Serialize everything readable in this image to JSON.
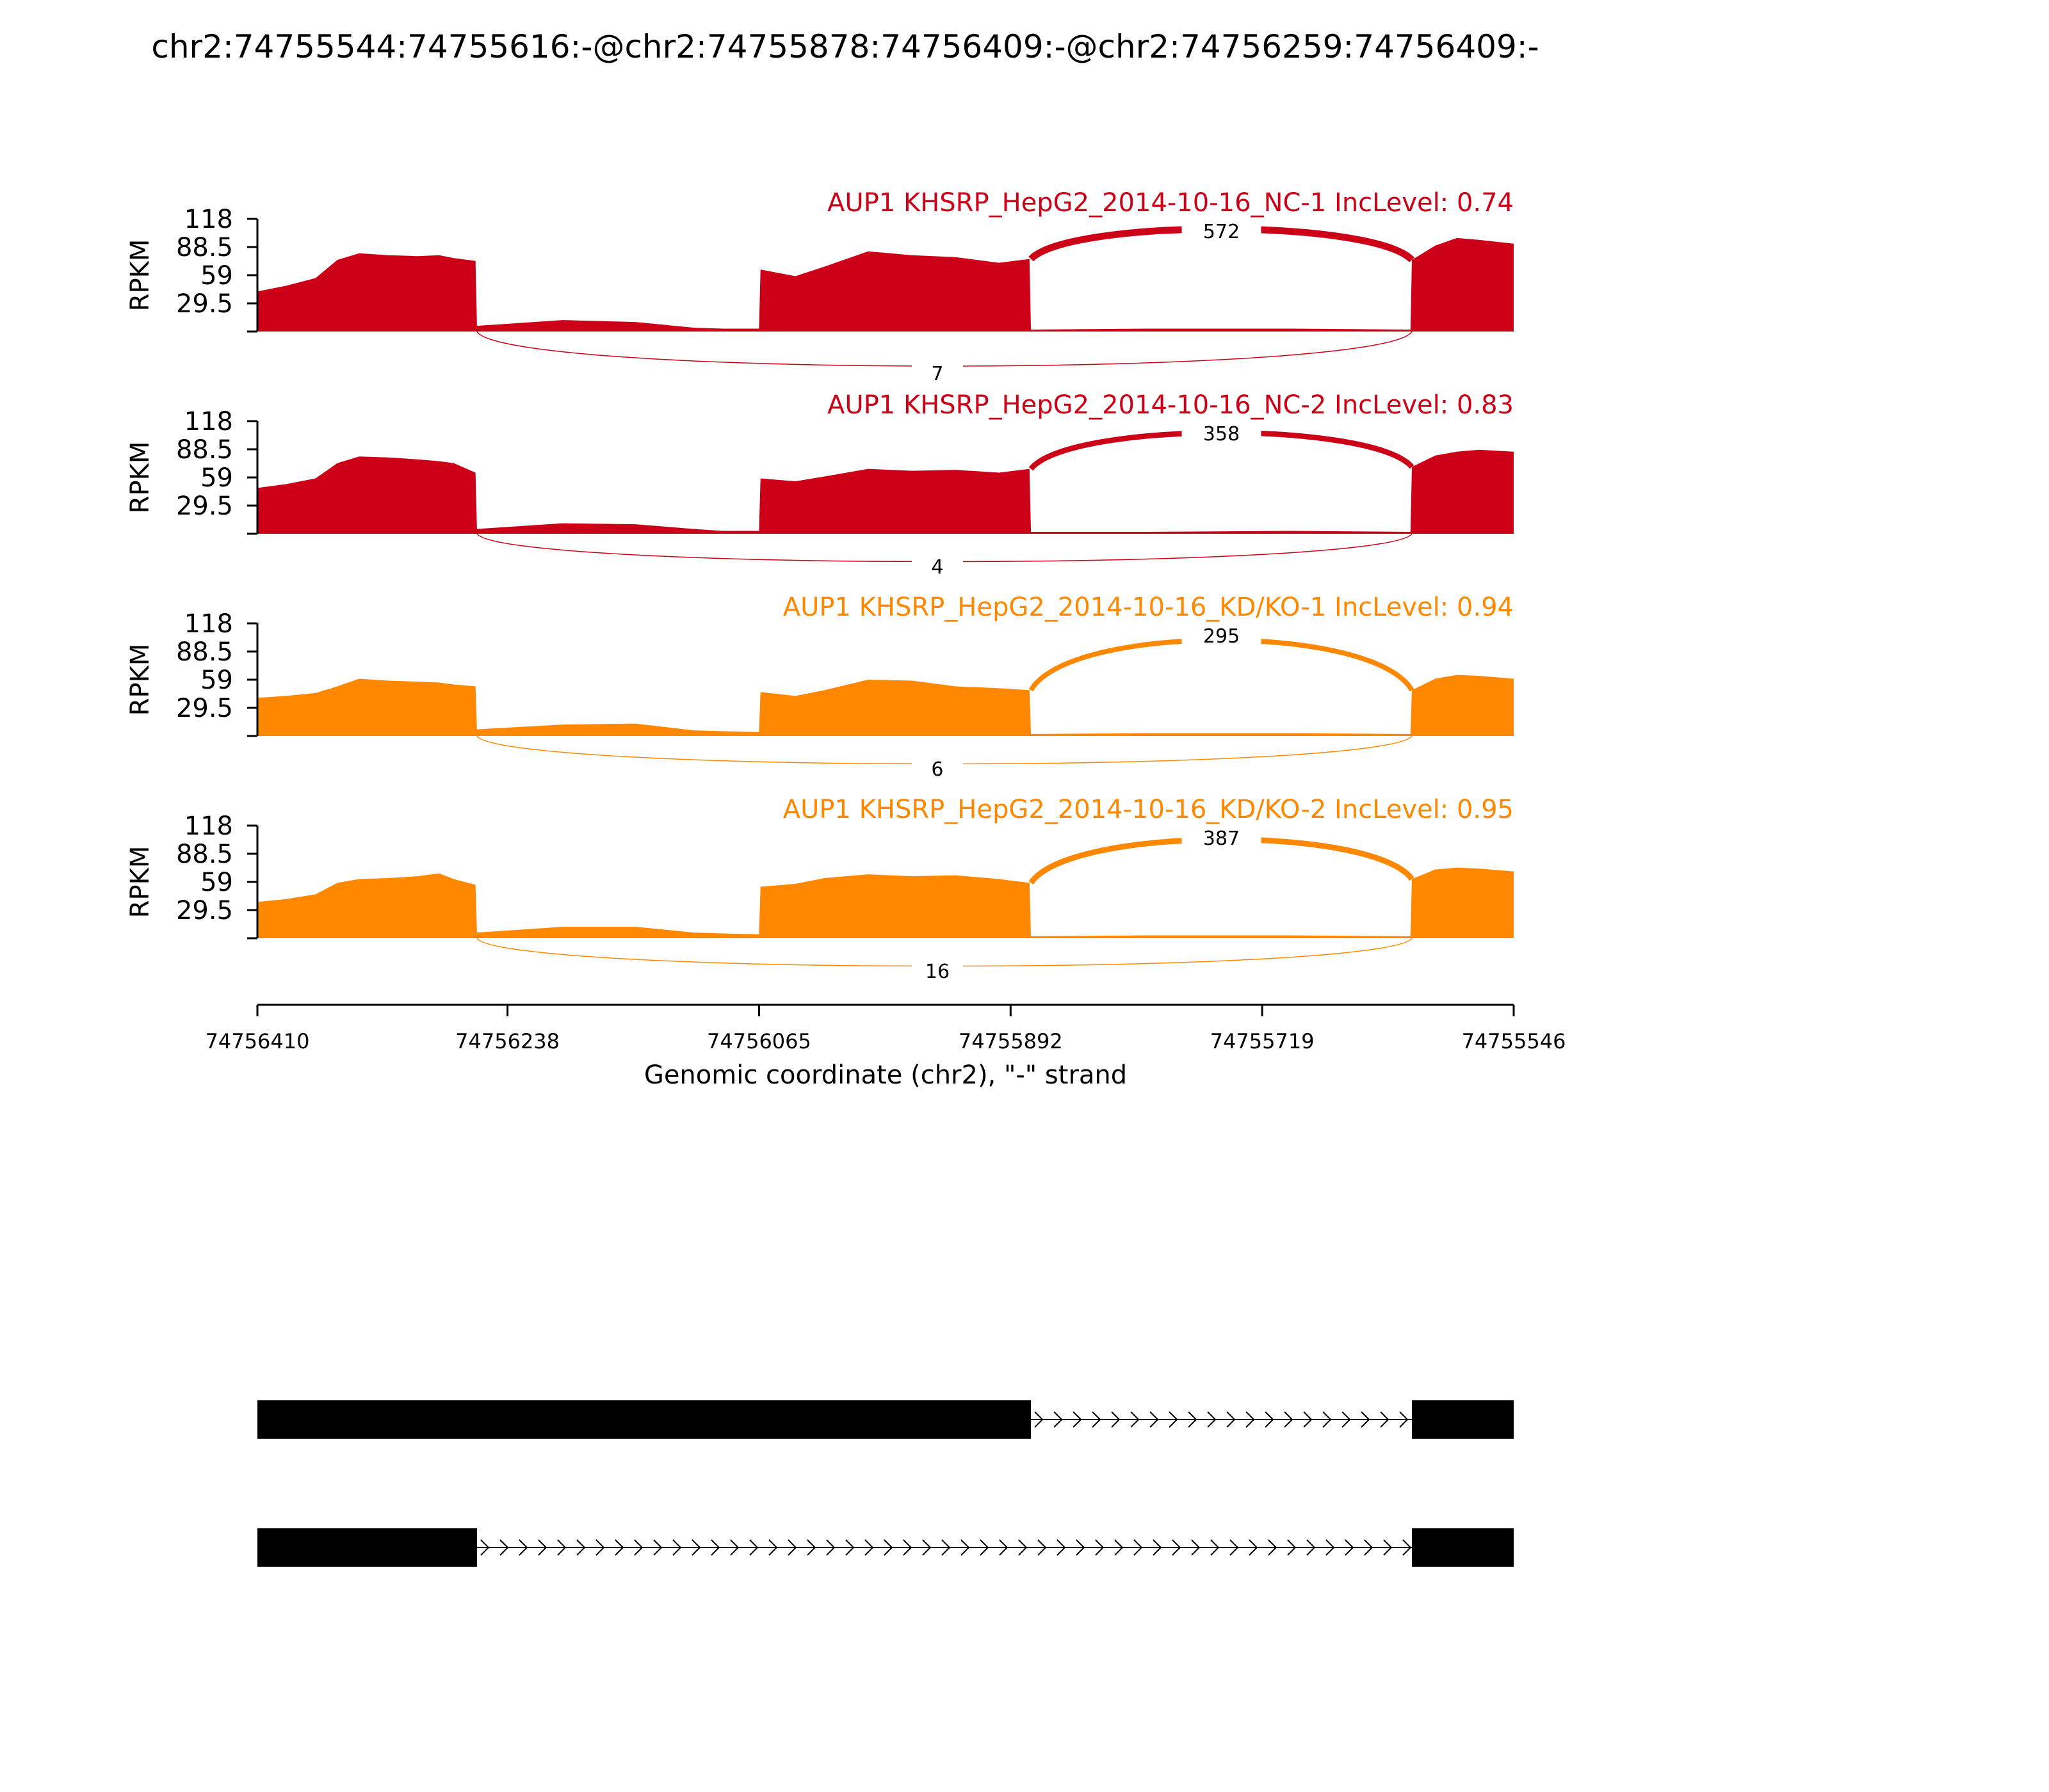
{
  "title": "chr2:74755544:74755616:-@chr2:74755878:74756409:-@chr2:74756259:74756409:-",
  "colors": {
    "nc": "#CC0016",
    "kd": "#FF8800",
    "text": "#000000"
  },
  "chart_data": {
    "type": "area",
    "title": "chr2:74755544:74755616:-@chr2:74755878:74756409:-@chr2:74756259:74756409:-",
    "xlabel": "Genomic coordinate (chr2), \"-\" strand",
    "ylabel": "RPKM",
    "xlim": [
      74756410,
      74755546
    ],
    "x_ticks": [
      "74756410",
      "74756238",
      "74756065",
      "74755892",
      "74755719",
      "74755546"
    ],
    "y_ticks": [
      "118",
      "88.5",
      "59",
      "29.5"
    ],
    "ylim": [
      0,
      118
    ],
    "coverage_profile_x": [
      74756410,
      74756390,
      74756370,
      74756355,
      74756340,
      74756320,
      74756300,
      74756285,
      74756275,
      74756260,
      74756259,
      74756200,
      74756150,
      74756110,
      74756090,
      74756065,
      74756064,
      74756040,
      74756020,
      74755990,
      74755960,
      74755930,
      74755900,
      74755879,
      74755878,
      74755800,
      74755700,
      74755617,
      74755616,
      74755600,
      74755585,
      74755570,
      74755546
    ],
    "series": [
      {
        "name": "AUP1 KHSRP_HepG2_2014-10-16_NC-1",
        "inc_level_label": "IncLevel: 0.74",
        "color": "#CC0016",
        "coverage": [
          42,
          48,
          56,
          75,
          82,
          80,
          79,
          80,
          77,
          74,
          6,
          12,
          10,
          4,
          3,
          3,
          65,
          58,
          68,
          84,
          80,
          78,
          72,
          76,
          2,
          3,
          3,
          2,
          75,
          90,
          98,
          96,
          92
        ],
        "junctions": [
          {
            "label": "572",
            "side": "above"
          },
          {
            "label": "7",
            "side": "below"
          }
        ]
      },
      {
        "name": "AUP1 KHSRP_HepG2_2014-10-16_NC-2",
        "inc_level_label": "IncLevel: 0.83",
        "color": "#CC0016",
        "coverage": [
          48,
          52,
          58,
          74,
          81,
          80,
          78,
          76,
          74,
          64,
          5,
          11,
          10,
          5,
          3,
          3,
          58,
          55,
          60,
          68,
          66,
          67,
          64,
          68,
          2,
          2,
          3,
          2,
          70,
          82,
          86,
          88,
          86
        ],
        "junctions": [
          {
            "label": "358",
            "side": "above"
          },
          {
            "label": "4",
            "side": "below"
          }
        ]
      },
      {
        "name": "AUP1 KHSRP_HepG2_2014-10-16_KD/KO-1",
        "inc_level_label": "IncLevel: 0.94",
        "color": "#FF8800",
        "coverage": [
          40,
          42,
          45,
          52,
          60,
          58,
          57,
          56,
          54,
          52,
          7,
          12,
          13,
          6,
          5,
          4,
          46,
          42,
          48,
          59,
          58,
          52,
          50,
          48,
          2,
          3,
          3,
          2,
          48,
          60,
          64,
          63,
          60
        ],
        "junctions": [
          {
            "label": "295",
            "side": "above"
          },
          {
            "label": "6",
            "side": "below"
          }
        ]
      },
      {
        "name": "AUP1 KHSRP_HepG2_2014-10-16_KD/KO-2",
        "inc_level_label": "IncLevel: 0.95",
        "color": "#FF8800",
        "coverage": [
          38,
          41,
          46,
          58,
          62,
          63,
          65,
          68,
          62,
          56,
          6,
          12,
          12,
          6,
          5,
          4,
          54,
          57,
          63,
          67,
          65,
          66,
          62,
          58,
          2,
          3,
          3,
          2,
          62,
          72,
          74,
          73,
          70
        ],
        "junctions": [
          {
            "label": "387",
            "side": "above"
          },
          {
            "label": "16",
            "side": "below"
          }
        ]
      }
    ],
    "isoforms": [
      {
        "exons": [
          [
            74756410,
            74755878
          ],
          [
            74755616,
            74755546
          ]
        ]
      },
      {
        "exons": [
          [
            74756410,
            74756259
          ],
          [
            74755616,
            74755546
          ]
        ]
      }
    ]
  }
}
